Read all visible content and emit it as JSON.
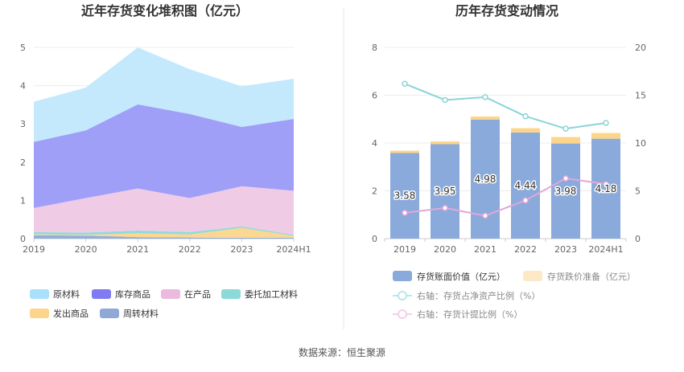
{
  "source": "数据来源：恒生聚源",
  "chart_data": [
    {
      "type": "area",
      "stacked": true,
      "title": "近年存货变化堆积图（亿元）",
      "categories": [
        "2019",
        "2020",
        "2021",
        "2022",
        "2023",
        "2024H1"
      ],
      "ylim": [
        0,
        5
      ],
      "yticks": [
        "0",
        "1",
        "2",
        "3",
        "4",
        "5"
      ],
      "series": [
        {
          "name": "周转材料",
          "color": "#8fa9d6",
          "values": [
            0.09,
            0.08,
            0.04,
            0.03,
            0.02,
            0.02
          ]
        },
        {
          "name": "发出商品",
          "color": "#fcd58b",
          "values": [
            0.02,
            0.02,
            0.1,
            0.08,
            0.26,
            0.05
          ]
        },
        {
          "name": "委托加工材料",
          "color": "#8bd9d9",
          "values": [
            0.06,
            0.06,
            0.07,
            0.06,
            0.04,
            0.03
          ]
        },
        {
          "name": "在产品",
          "color": "#efc8e4",
          "values": [
            0.63,
            0.9,
            1.1,
            0.89,
            1.05,
            1.15
          ]
        },
        {
          "name": "库存商品",
          "color": "#9b9af8",
          "values": [
            1.73,
            1.77,
            2.2,
            2.2,
            1.55,
            1.88
          ]
        },
        {
          "name": "原材料",
          "color": "#c2e8fc",
          "values": [
            1.05,
            1.12,
            1.49,
            1.17,
            1.06,
            1.05
          ]
        }
      ],
      "legend": [
        {
          "name": "原材料",
          "color": "#a9e0fb"
        },
        {
          "name": "库存商品",
          "color": "#7f7cf2"
        },
        {
          "name": "在产品",
          "color": "#ebbbdf"
        },
        {
          "name": "委托加工材料",
          "color": "#8bd9d9"
        },
        {
          "name": "发出商品",
          "color": "#fcd58b"
        },
        {
          "name": "周转材料",
          "color": "#8fa9d6"
        }
      ]
    },
    {
      "type": "bar",
      "title": "历年存货变动情况",
      "categories": [
        "2019",
        "2020",
        "2021",
        "2022",
        "2023",
        "2024H1"
      ],
      "ylim_left": [
        0,
        8
      ],
      "yticks_left": [
        "0",
        "2",
        "4",
        "6",
        "8"
      ],
      "ylim_right": [
        0,
        20
      ],
      "yticks_right": [
        "0",
        "5",
        "10",
        "15",
        "20"
      ],
      "series": [
        {
          "name": "存货账面价值（亿元）",
          "axis": "left",
          "kind": "bar",
          "color": "#8aaadc",
          "values": [
            3.58,
            3.95,
            4.98,
            4.44,
            3.98,
            4.18
          ],
          "labels": [
            "3.58",
            "3.95",
            "4.98",
            "4.44",
            "3.98",
            "4.18"
          ]
        },
        {
          "name": "存货跌价准备（亿元）",
          "axis": "left",
          "kind": "bar-stack",
          "color": "#fcd58b",
          "values": [
            0.1,
            0.12,
            0.13,
            0.18,
            0.27,
            0.24
          ]
        },
        {
          "name": "右轴：存货占净资产比例（%）",
          "axis": "right",
          "kind": "line",
          "color": "#8ad4d8",
          "values": [
            16.2,
            14.5,
            14.8,
            12.8,
            11.5,
            12.1
          ]
        },
        {
          "name": "右轴：存货计提比例（%）",
          "axis": "right",
          "kind": "line",
          "color": "#e3a7d8",
          "values": [
            2.7,
            3.2,
            2.4,
            4.0,
            6.3,
            5.7
          ]
        }
      ]
    }
  ]
}
